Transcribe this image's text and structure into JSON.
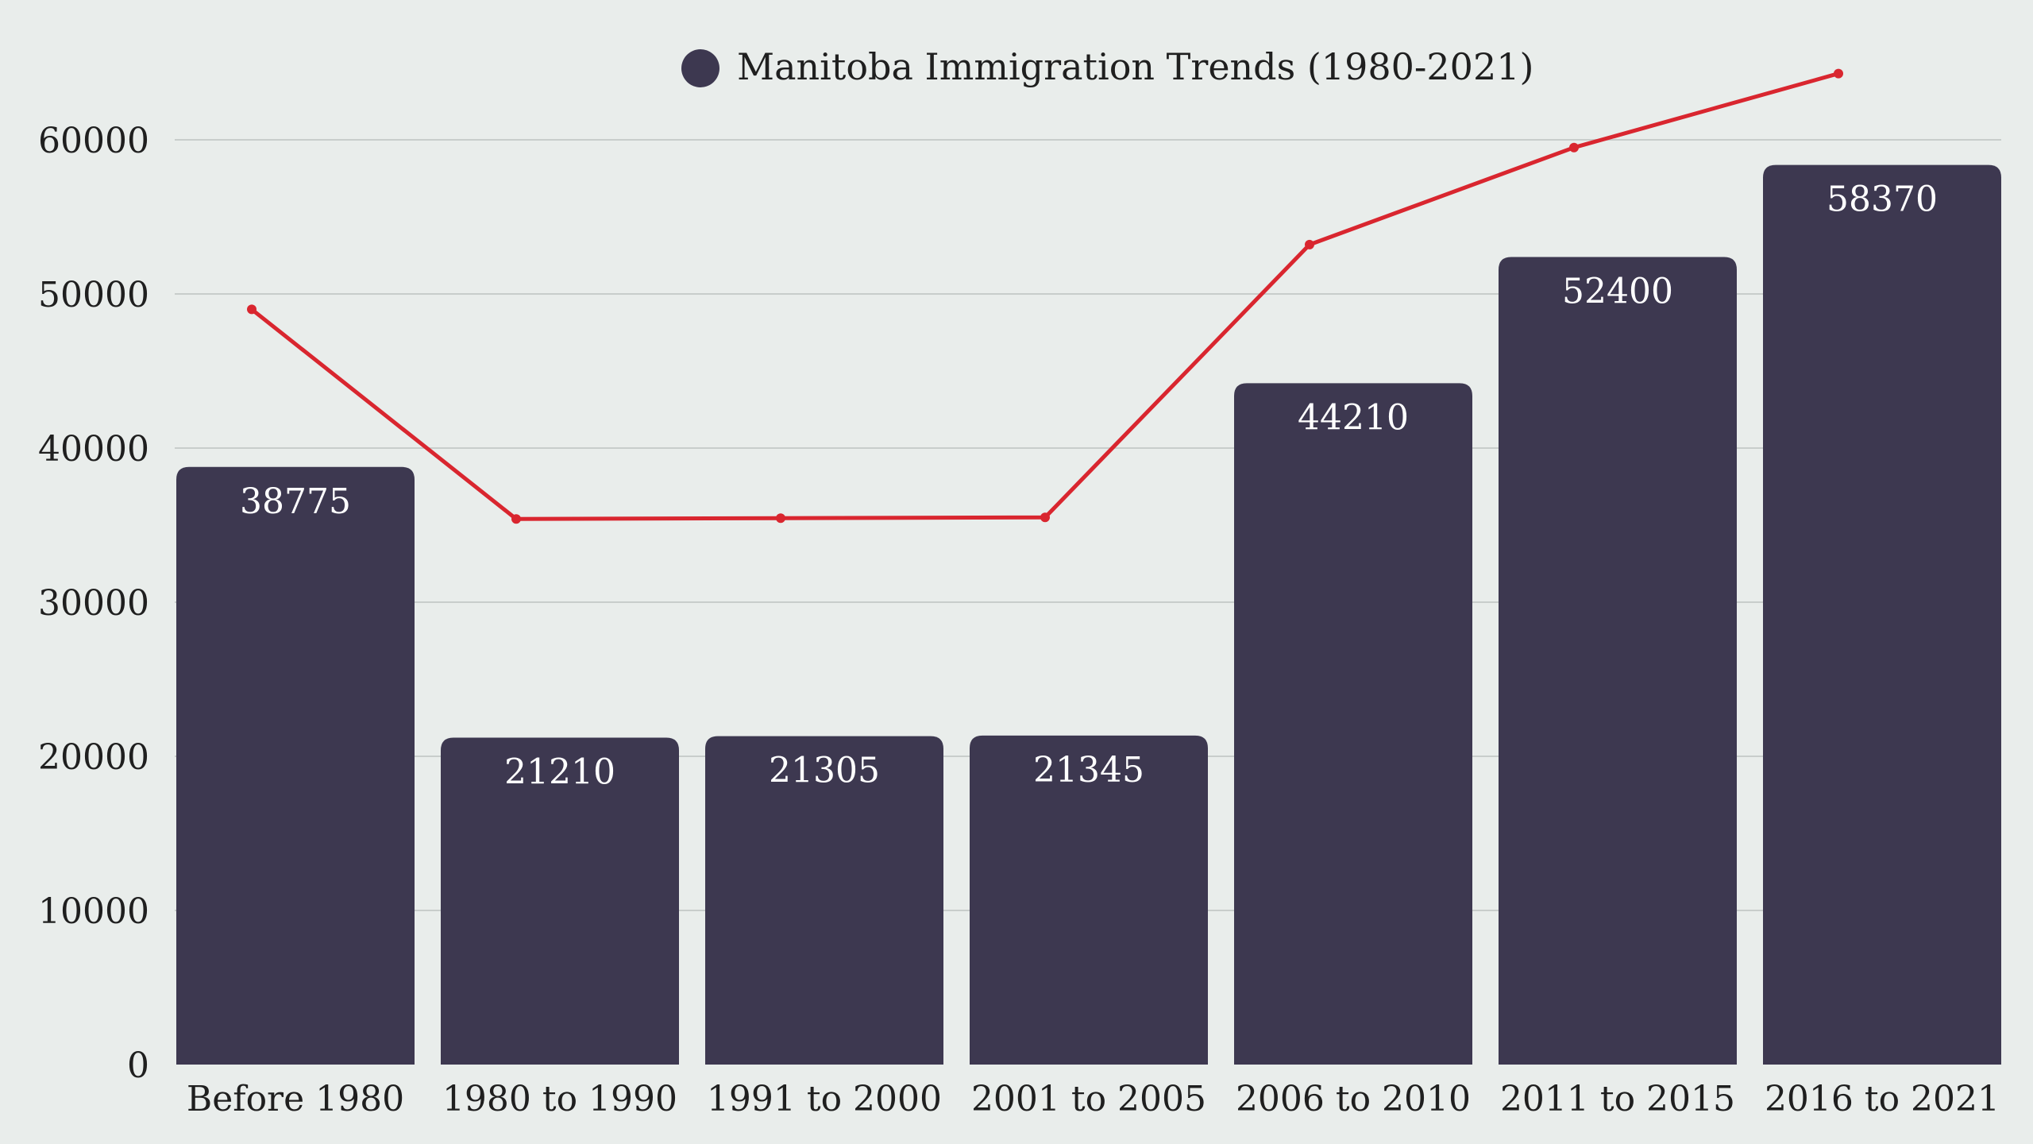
{
  "chart_data": {
    "type": "bar",
    "title": "",
    "xlabel": "",
    "ylabel": "",
    "categories": [
      "Before 1980",
      "1980 to 1990",
      "1991 to 2000",
      "2001 to 2005",
      "2006 to 2010",
      "2011 to 2015",
      "2016 to 2021"
    ],
    "series": [
      {
        "name": "Manitoba Immigration Trends (1980-2021)",
        "type": "bar",
        "values": [
          38775,
          21210,
          21305,
          21345,
          44210,
          52400,
          58370
        ],
        "color": "#3d3850"
      },
      {
        "type": "line",
        "values": [
          49000,
          35400,
          35450,
          35500,
          53200,
          59500,
          64300
        ],
        "color": "#d9262f"
      }
    ],
    "ylim": [
      0,
      60000
    ],
    "yticks": [
      0,
      10000,
      20000,
      30000,
      40000,
      50000,
      60000
    ],
    "grid": true,
    "legend": "top-center"
  }
}
